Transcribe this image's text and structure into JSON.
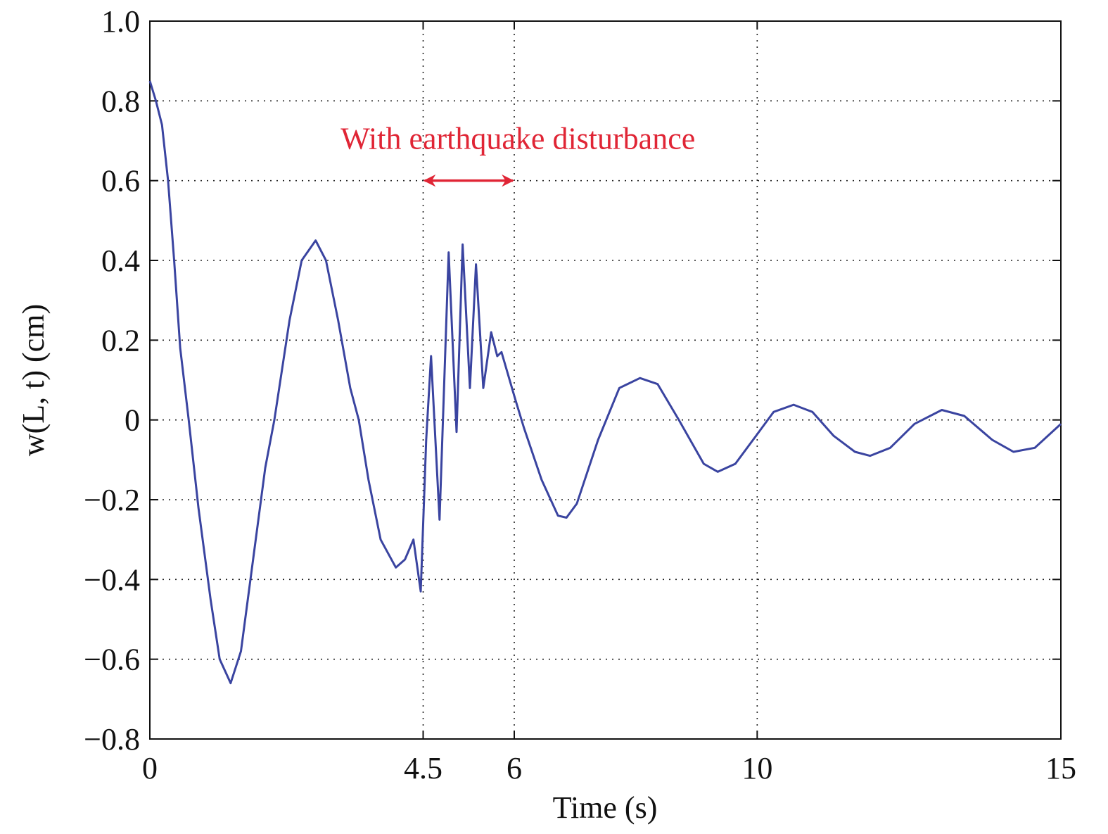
{
  "chart_data": {
    "type": "line",
    "xlabel": "Time (s)",
    "ylabel": "w(L, t) (cm)",
    "xlim": [
      0,
      15
    ],
    "ylim": [
      -0.8,
      1
    ],
    "xticks": [
      0,
      4.5,
      6,
      10,
      15
    ],
    "yticks": [
      {
        "value": -0.8,
        "label": "−0.8"
      },
      {
        "value": -0.6,
        "label": "−0.6"
      },
      {
        "value": -0.4,
        "label": "−0.4"
      },
      {
        "value": -0.2,
        "label": "−0.2"
      },
      0,
      0.2,
      0.4,
      0.6,
      0.8,
      {
        "value": 1,
        "label": "1.0"
      }
    ],
    "grid": true,
    "annotation": {
      "text": "With earthquake disturbance",
      "arrow_x": [
        4.5,
        6
      ],
      "arrow_y": 0.6,
      "color": "#e02535"
    },
    "series": [
      {
        "color": "#3a44a0",
        "x": [
          0,
          0.1,
          0.2,
          0.3,
          0.4,
          0.5,
          0.64,
          0.8,
          1.0,
          1.15,
          1.33,
          1.5,
          1.7,
          1.9,
          2.05,
          2.3,
          2.5,
          2.73,
          2.9,
          3.1,
          3.3,
          3.44,
          3.6,
          3.8,
          4.05,
          4.2,
          4.34,
          4.46,
          4.55,
          4.63,
          4.77,
          4.92,
          5.05,
          5.15,
          5.27,
          5.37,
          5.49,
          5.62,
          5.72,
          5.79,
          6.02,
          6.16,
          6.45,
          6.72,
          6.86,
          7.03,
          7.38,
          7.73,
          8.07,
          8.36,
          8.71,
          9.12,
          9.35,
          9.64,
          9.98,
          10.27,
          10.6,
          10.91,
          11.26,
          11.61,
          11.86,
          12.19,
          12.59,
          13.04,
          13.41,
          13.87,
          14.22,
          14.57,
          15
        ],
        "values": [
          0.85,
          0.8,
          0.74,
          0.6,
          0.4,
          0.18,
          0,
          -0.22,
          -0.45,
          -0.6,
          -0.66,
          -0.58,
          -0.35,
          -0.12,
          0,
          0.25,
          0.4,
          0.45,
          0.4,
          0.25,
          0.08,
          0,
          -0.15,
          -0.3,
          -0.37,
          -0.35,
          -0.3,
          -0.43,
          -0.05,
          0.16,
          -0.25,
          0.42,
          -0.03,
          0.44,
          0.08,
          0.39,
          0.08,
          0.22,
          0.16,
          0.17,
          0.05,
          -0.02,
          -0.15,
          -0.24,
          -0.245,
          -0.21,
          -0.05,
          0.08,
          0.105,
          0.09,
          0,
          -0.11,
          -0.13,
          -0.11,
          -0.04,
          0.02,
          0.038,
          0.02,
          -0.04,
          -0.08,
          -0.09,
          -0.07,
          -0.01,
          0.025,
          0.01,
          -0.05,
          -0.08,
          -0.07,
          -0.01
        ]
      }
    ]
  }
}
